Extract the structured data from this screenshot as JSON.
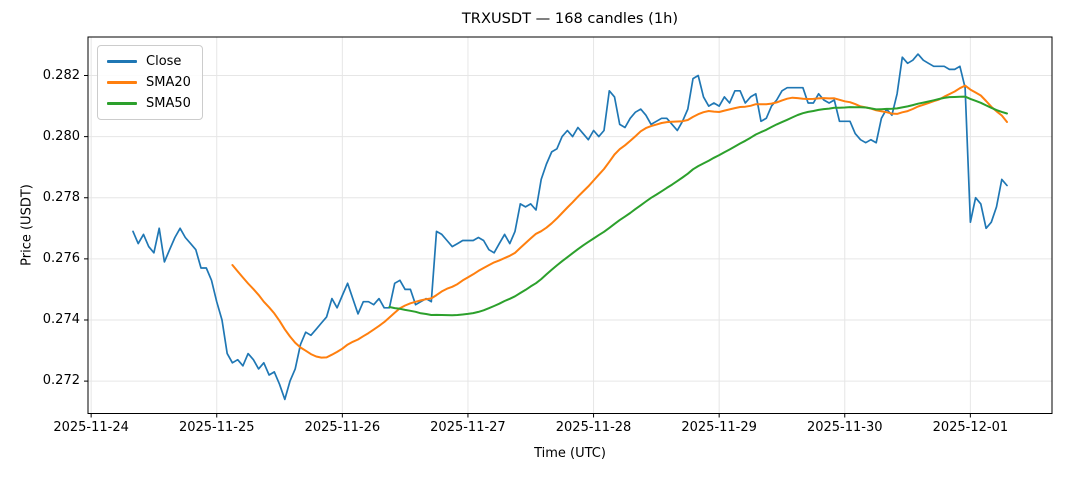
{
  "chart_data": {
    "type": "line",
    "title": "TRXUSDT — 168 candles (1h)",
    "xlabel": "Time (UTC)",
    "ylabel": "Price (USDT)",
    "candle_count": 168,
    "interval": "1h",
    "x_start_utc": "2025-11-24 08:00",
    "x_start_hour": 8,
    "x_tick_labels": [
      "2025-11-24",
      "2025-11-25",
      "2025-11-26",
      "2025-11-27",
      "2025-11-28",
      "2025-11-29",
      "2025-11-30",
      "2025-12-01"
    ],
    "x_tick_hours": [
      0,
      24,
      48,
      72,
      96,
      120,
      144,
      168
    ],
    "y_tick_labels": [
      "0.272",
      "0.274",
      "0.276",
      "0.278",
      "0.280",
      "0.282"
    ],
    "y_ticks": [
      0.272,
      0.274,
      0.276,
      0.278,
      0.28,
      0.282
    ],
    "ylim": [
      0.27094,
      0.28326
    ],
    "xlim_hours": [
      -0.6,
      183.6
    ],
    "grid": true,
    "grid_color": "#e6e6e6",
    "spine_color": "#000000",
    "legend_position": "upper left",
    "series": [
      {
        "name": "Close",
        "color": "#1f77b4",
        "values": [
          0.2769,
          0.2765,
          0.2768,
          0.2764,
          0.2762,
          0.277,
          0.2759,
          0.2763,
          0.2767,
          0.277,
          0.2767,
          0.2765,
          0.2763,
          0.2757,
          0.2757,
          0.2753,
          0.2746,
          0.274,
          0.2729,
          0.2726,
          0.2727,
          0.2725,
          0.2729,
          0.2727,
          0.2724,
          0.2726,
          0.2722,
          0.2723,
          0.2719,
          0.2714,
          0.272,
          0.2724,
          0.2732,
          0.2736,
          0.2735,
          0.2737,
          0.2739,
          0.2741,
          0.2747,
          0.2744,
          0.2748,
          0.2752,
          0.2747,
          0.2742,
          0.2746,
          0.2746,
          0.2745,
          0.2747,
          0.2744,
          0.2744,
          0.2752,
          0.2753,
          0.275,
          0.275,
          0.2745,
          0.2746,
          0.2747,
          0.2746,
          0.2769,
          0.2768,
          0.2766,
          0.2764,
          0.2765,
          0.2766,
          0.2766,
          0.2766,
          0.2767,
          0.2766,
          0.2763,
          0.2762,
          0.2765,
          0.2768,
          0.2765,
          0.2769,
          0.2778,
          0.2777,
          0.2778,
          0.2776,
          0.2786,
          0.2791,
          0.2795,
          0.2796,
          0.28,
          0.2802,
          0.28,
          0.2803,
          0.2801,
          0.2799,
          0.2802,
          0.28,
          0.2802,
          0.2815,
          0.2813,
          0.2804,
          0.2803,
          0.2806,
          0.2808,
          0.2809,
          0.2807,
          0.2804,
          0.2805,
          0.2806,
          0.2806,
          0.2804,
          0.2802,
          0.2805,
          0.2809,
          0.2819,
          0.282,
          0.2813,
          0.281,
          0.2811,
          0.281,
          0.2813,
          0.2811,
          0.2815,
          0.2815,
          0.2811,
          0.2813,
          0.2814,
          0.2805,
          0.2806,
          0.281,
          0.2812,
          0.2815,
          0.2816,
          0.2816,
          0.2816,
          0.2816,
          0.2811,
          0.2811,
          0.2814,
          0.2812,
          0.2811,
          0.2812,
          0.2805,
          0.2805,
          0.2805,
          0.2801,
          0.2799,
          0.2798,
          0.2799,
          0.2798,
          0.2806,
          0.2809,
          0.2807,
          0.2814,
          0.2826,
          0.2824,
          0.2825,
          0.2827,
          0.2825,
          0.2824,
          0.2823,
          0.2823,
          0.2823,
          0.2822,
          0.2822,
          0.2823,
          0.2816,
          0.2772,
          0.278,
          0.2778,
          0.277,
          0.2772,
          0.2777,
          0.2786,
          0.2784
        ]
      },
      {
        "name": "SMA20",
        "color": "#ff7f0e",
        "window": 20,
        "derived_from": "Close"
      },
      {
        "name": "SMA50",
        "color": "#2ca02c",
        "window": 50,
        "derived_from": "Close"
      }
    ]
  }
}
